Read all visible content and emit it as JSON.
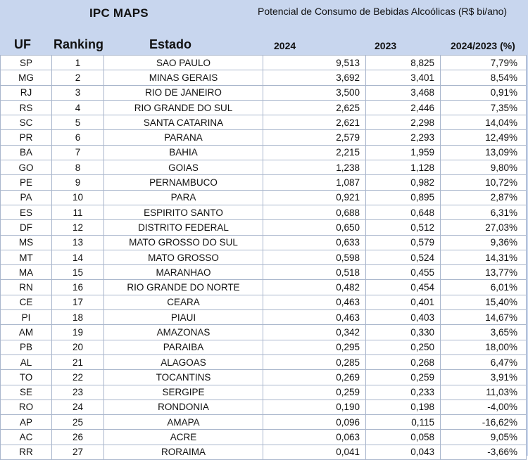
{
  "brand": "IPC MAPS",
  "subtitle": "Potencial de Consumo de Bebidas Alcoólicas (R$ bi/ano)",
  "headers": {
    "uf": "UF",
    "ranking": "Ranking",
    "estado": "Estado",
    "y2024": "2024",
    "y2023": "2023",
    "pct": "2024/2023 (%)"
  },
  "rows": [
    {
      "uf": "SP",
      "rank": "1",
      "estado": "SAO PAULO",
      "v2024": "9,513",
      "v2023": "8,825",
      "pct": "7,79%"
    },
    {
      "uf": "MG",
      "rank": "2",
      "estado": "MINAS GERAIS",
      "v2024": "3,692",
      "v2023": "3,401",
      "pct": "8,54%"
    },
    {
      "uf": "RJ",
      "rank": "3",
      "estado": "RIO DE JANEIRO",
      "v2024": "3,500",
      "v2023": "3,468",
      "pct": "0,91%"
    },
    {
      "uf": "RS",
      "rank": "4",
      "estado": "RIO GRANDE DO SUL",
      "v2024": "2,625",
      "v2023": "2,446",
      "pct": "7,35%"
    },
    {
      "uf": "SC",
      "rank": "5",
      "estado": "SANTA CATARINA",
      "v2024": "2,621",
      "v2023": "2,298",
      "pct": "14,04%"
    },
    {
      "uf": "PR",
      "rank": "6",
      "estado": "PARANA",
      "v2024": "2,579",
      "v2023": "2,293",
      "pct": "12,49%"
    },
    {
      "uf": "BA",
      "rank": "7",
      "estado": "BAHIA",
      "v2024": "2,215",
      "v2023": "1,959",
      "pct": "13,09%"
    },
    {
      "uf": "GO",
      "rank": "8",
      "estado": "GOIAS",
      "v2024": "1,238",
      "v2023": "1,128",
      "pct": "9,80%"
    },
    {
      "uf": "PE",
      "rank": "9",
      "estado": "PERNAMBUCO",
      "v2024": "1,087",
      "v2023": "0,982",
      "pct": "10,72%"
    },
    {
      "uf": "PA",
      "rank": "10",
      "estado": "PARA",
      "v2024": "0,921",
      "v2023": "0,895",
      "pct": "2,87%"
    },
    {
      "uf": "ES",
      "rank": "11",
      "estado": "ESPIRITO SANTO",
      "v2024": "0,688",
      "v2023": "0,648",
      "pct": "6,31%"
    },
    {
      "uf": "DF",
      "rank": "12",
      "estado": "DISTRITO FEDERAL",
      "v2024": "0,650",
      "v2023": "0,512",
      "pct": "27,03%"
    },
    {
      "uf": "MS",
      "rank": "13",
      "estado": "MATO GROSSO DO SUL",
      "v2024": "0,633",
      "v2023": "0,579",
      "pct": "9,36%"
    },
    {
      "uf": "MT",
      "rank": "14",
      "estado": "MATO GROSSO",
      "v2024": "0,598",
      "v2023": "0,524",
      "pct": "14,31%"
    },
    {
      "uf": "MA",
      "rank": "15",
      "estado": "MARANHAO",
      "v2024": "0,518",
      "v2023": "0,455",
      "pct": "13,77%"
    },
    {
      "uf": "RN",
      "rank": "16",
      "estado": "RIO GRANDE DO NORTE",
      "v2024": "0,482",
      "v2023": "0,454",
      "pct": "6,01%"
    },
    {
      "uf": "CE",
      "rank": "17",
      "estado": "CEARA",
      "v2024": "0,463",
      "v2023": "0,401",
      "pct": "15,40%"
    },
    {
      "uf": "PI",
      "rank": "18",
      "estado": "PIAUI",
      "v2024": "0,463",
      "v2023": "0,403",
      "pct": "14,67%"
    },
    {
      "uf": "AM",
      "rank": "19",
      "estado": "AMAZONAS",
      "v2024": "0,342",
      "v2023": "0,330",
      "pct": "3,65%"
    },
    {
      "uf": "PB",
      "rank": "20",
      "estado": "PARAIBA",
      "v2024": "0,295",
      "v2023": "0,250",
      "pct": "18,00%"
    },
    {
      "uf": "AL",
      "rank": "21",
      "estado": "ALAGOAS",
      "v2024": "0,285",
      "v2023": "0,268",
      "pct": "6,47%"
    },
    {
      "uf": "TO",
      "rank": "22",
      "estado": "TOCANTINS",
      "v2024": "0,269",
      "v2023": "0,259",
      "pct": "3,91%"
    },
    {
      "uf": "SE",
      "rank": "23",
      "estado": "SERGIPE",
      "v2024": "0,259",
      "v2023": "0,233",
      "pct": "11,03%"
    },
    {
      "uf": "RO",
      "rank": "24",
      "estado": "RONDONIA",
      "v2024": "0,190",
      "v2023": "0,198",
      "pct": "-4,00%"
    },
    {
      "uf": "AP",
      "rank": "25",
      "estado": "AMAPA",
      "v2024": "0,096",
      "v2023": "0,115",
      "pct": "-16,62%"
    },
    {
      "uf": "AC",
      "rank": "26",
      "estado": "ACRE",
      "v2024": "0,063",
      "v2023": "0,058",
      "pct": "9,05%"
    },
    {
      "uf": "RR",
      "rank": "27",
      "estado": "RORAIMA",
      "v2024": "0,041",
      "v2023": "0,043",
      "pct": "-3,66%"
    }
  ]
}
